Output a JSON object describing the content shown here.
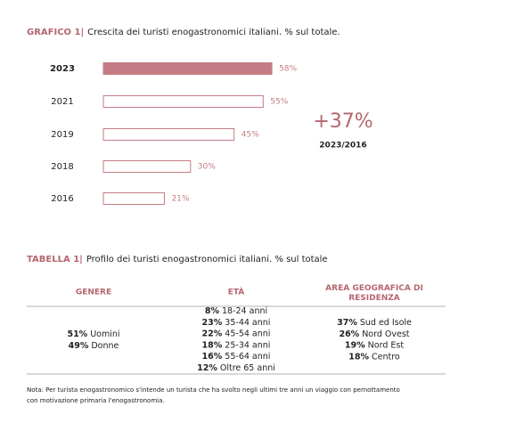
{
  "chart_data": {
    "type": "bar",
    "orientation": "horizontal",
    "label": "GRAFICO 1|",
    "title": "Crescita dei turisti enogastronomici italiani. % sul totale.",
    "categories": [
      "2023",
      "2021",
      "2019",
      "2018",
      "2016"
    ],
    "values": [
      58,
      55,
      45,
      30,
      21
    ],
    "value_labels": [
      "58%",
      "55%",
      "45%",
      "30%",
      "21%"
    ],
    "colors": [
      "#c47c84",
      "#ffffff",
      "#ffffff",
      "#ffffff",
      "#ffffff"
    ],
    "edgecolor": "#c47c84",
    "annotations": [
      "+37%",
      "2023/2016"
    ]
  },
  "table": {
    "label": "TABELLA 1|",
    "title": "Profilo dei turisti enogastronomici italiani. % sul totale",
    "headers": [
      "GENERE",
      "ETÀ",
      "AREA GEOGRAFICA DI RESIDENZA"
    ],
    "columns": [
      [
        {
          "pct": "51%",
          "text": "Uomini"
        },
        {
          "pct": "49%",
          "text": "Donne"
        }
      ],
      [
        {
          "pct": "8%",
          "text": "18-24 anni"
        },
        {
          "pct": "23%",
          "text": "35-44 anni"
        },
        {
          "pct": "22%",
          "text": "45-54 anni"
        },
        {
          "pct": "18%",
          "text": "25-34 anni"
        },
        {
          "pct": "16%",
          "text": "55-64 anni"
        },
        {
          "pct": "12%",
          "text": "Oltre 65 anni"
        }
      ],
      [
        {
          "pct": "37%",
          "text": "Sud ed Isole"
        },
        {
          "pct": "26%",
          "text": "Nord Ovest"
        },
        {
          "pct": "19%",
          "text": "Nord Est"
        },
        {
          "pct": "18%",
          "text": "Centro"
        }
      ]
    ]
  },
  "note": [
    "Nota: Per turista enogastronomico s'intende un turista che ha svolto negli ultimi tre anni un viaggio con pernottamento",
    "con motivazione primaria l'enogastronomia."
  ]
}
